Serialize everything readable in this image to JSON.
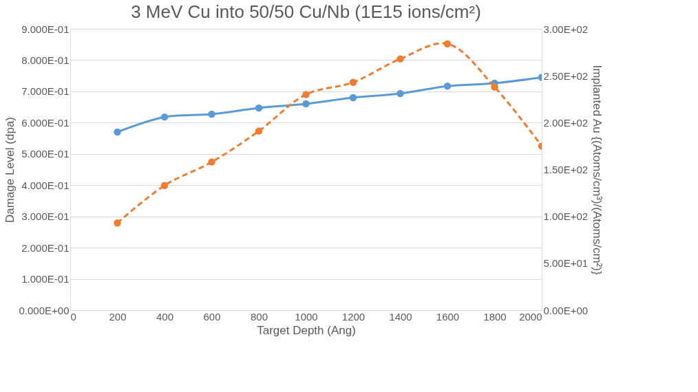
{
  "chart_data": {
    "type": "line",
    "title": "3 MeV Cu into 50/50 Cu/Nb (1E15 ions/cm²)",
    "xlabel": "Target Depth (Ang)",
    "ylabel": "Damage Level (dpa)",
    "y2label": "Implanted Au {(Atoms/cm³)/(Atoms/cm²)}",
    "x": [
      200,
      400,
      600,
      800,
      1000,
      1200,
      1400,
      1600,
      1800,
      2000
    ],
    "series": [
      {
        "color": "#5b9bd5",
        "values": [
          0.57,
          0.618,
          0.627,
          0.647,
          0.66,
          0.68,
          0.693,
          0.717,
          0.726,
          0.745
        ],
        "line_style": "solid"
      },
      {
        "color": "#ed7d31",
        "values": [
          93,
          133,
          158,
          191,
          230,
          243,
          268,
          284,
          238,
          175
        ],
        "axis": "y2",
        "line_style": "dashed"
      }
    ],
    "xlim": [
      0,
      2000
    ],
    "xticks": [
      0,
      200,
      400,
      600,
      800,
      1000,
      1200,
      1400,
      1600,
      1800,
      2000
    ],
    "ylim": [
      0,
      0.9
    ],
    "yticks": [
      {
        "value": 0,
        "label": "0.000E+00"
      },
      {
        "value": 0.1,
        "label": "1.000E-01"
      },
      {
        "value": 0.2,
        "label": "2.000E-01"
      },
      {
        "value": 0.3,
        "label": "3.000E-01"
      },
      {
        "value": 0.4,
        "label": "4.000E-01"
      },
      {
        "value": 0.5,
        "label": "5.000E-01"
      },
      {
        "value": 0.6,
        "label": "6.000E-01"
      },
      {
        "value": 0.7,
        "label": "7.000E-01"
      },
      {
        "value": 0.8,
        "label": "8.000E-01"
      },
      {
        "value": 0.9,
        "label": "9.000E-01"
      }
    ],
    "y2lim": [
      0,
      300
    ],
    "y2ticks": [
      {
        "value": 0,
        "label": "0.00E+00"
      },
      {
        "value": 50,
        "label": "5.00E+01"
      },
      {
        "value": 100,
        "label": "1.00E+02"
      },
      {
        "value": 150,
        "label": "1.50E+02"
      },
      {
        "value": 200,
        "label": "2.00E+02"
      },
      {
        "value": 250,
        "label": "2.50E+02"
      },
      {
        "value": 300,
        "label": "3.00E+02"
      }
    ],
    "grid": "y",
    "marker": "circle"
  }
}
